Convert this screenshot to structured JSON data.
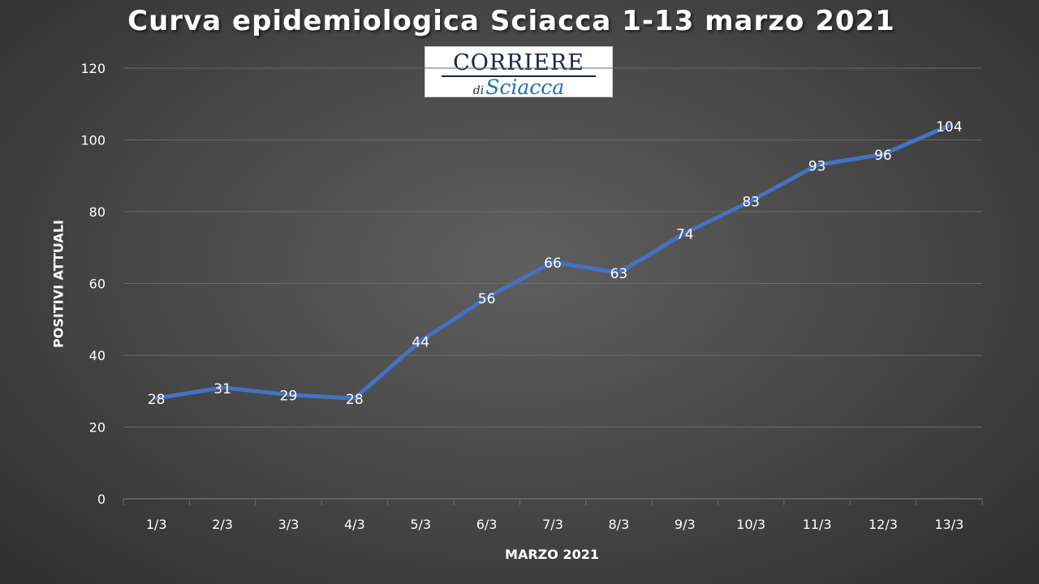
{
  "chart_data": {
    "type": "line",
    "title": "Curva epidemiologica Sciacca 1-13 marzo 2021",
    "xlabel": "MARZO 2021",
    "ylabel": "POSITIVI ATTUALI",
    "categories": [
      "1/3",
      "2/3",
      "3/3",
      "4/3",
      "5/3",
      "6/3",
      "7/3",
      "8/3",
      "9/3",
      "10/3",
      "11/3",
      "12/3",
      "13/3"
    ],
    "series": [
      {
        "values": [
          28,
          31,
          29,
          28,
          44,
          56,
          66,
          63,
          74,
          83,
          93,
          96,
          104
        ],
        "color": "#4472c4"
      }
    ],
    "ylim": [
      0,
      120
    ],
    "yticks": [
      0,
      20,
      40,
      60,
      80,
      100,
      120
    ],
    "grid": true,
    "data_labels": true
  },
  "logo": {
    "top": "CORRIERE",
    "di": "di",
    "bottom": "Sciacca"
  },
  "colors": {
    "background": "#4a4a4a",
    "line": "#4472c4",
    "text": "#ffffff",
    "grid": "#6a6a6a"
  }
}
